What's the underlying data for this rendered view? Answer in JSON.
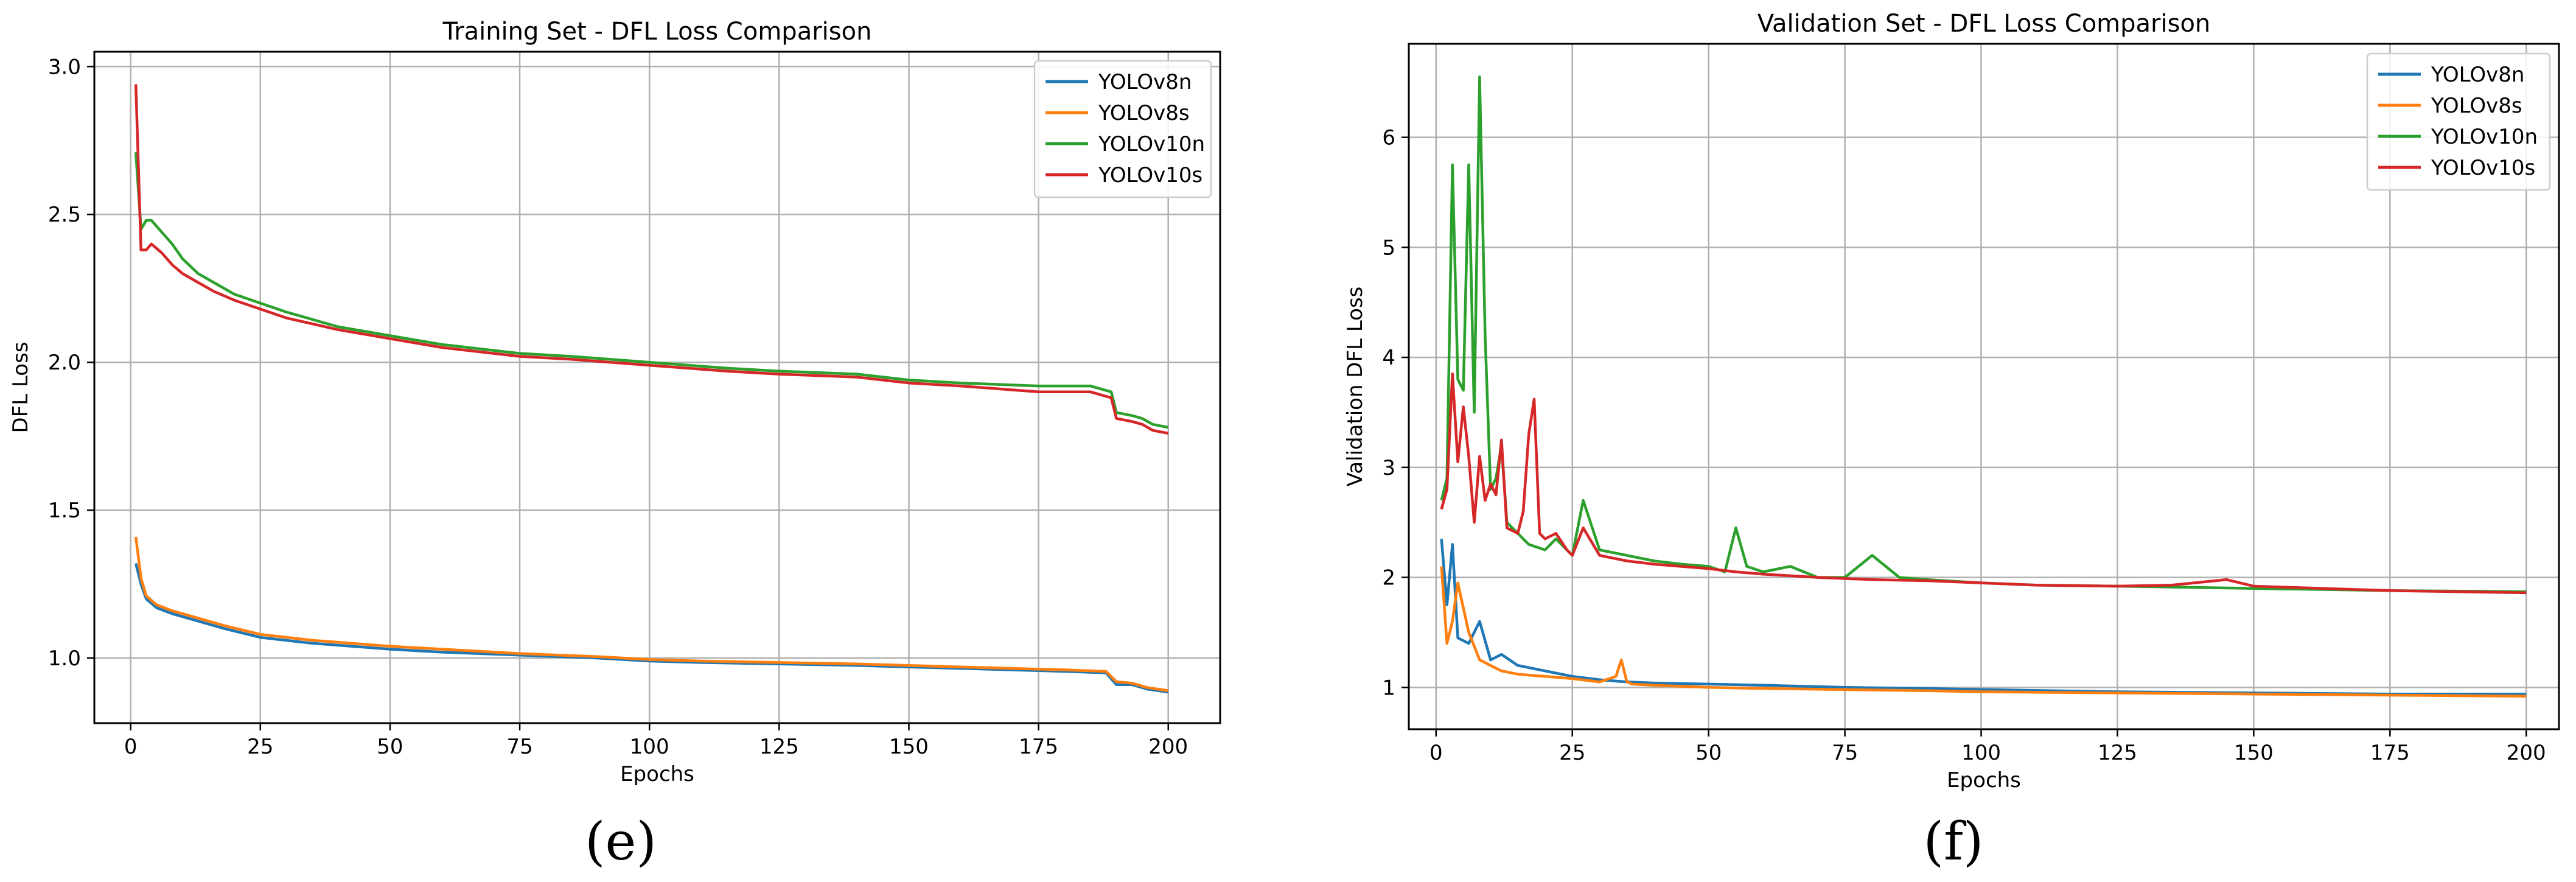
{
  "chart_data": [
    {
      "type": "line",
      "title": "Training Set - DFL Loss Comparison",
      "xlabel": "Epochs",
      "ylabel": "DFL Loss",
      "xlim": [
        -7,
        210
      ],
      "ylim": [
        0.78,
        3.05
      ],
      "xticks": [
        0,
        25,
        50,
        75,
        100,
        125,
        150,
        175,
        200
      ],
      "yticks": [
        1.0,
        1.5,
        2.0,
        2.5,
        3.0
      ],
      "ytick_labels": [
        "1.0",
        "1.5",
        "2.0",
        "2.5",
        "3.0"
      ],
      "grid": true,
      "legend_position": "top-right",
      "caption": "(e)",
      "series": [
        {
          "name": "YOLOv8n",
          "color": "#1f77b4",
          "x": [
            1,
            2,
            3,
            5,
            8,
            12,
            18,
            25,
            35,
            50,
            60,
            75,
            90,
            100,
            110,
            125,
            140,
            150,
            160,
            170,
            180,
            188,
            190,
            193,
            196,
            198,
            200
          ],
          "y": [
            1.32,
            1.25,
            1.2,
            1.17,
            1.15,
            1.13,
            1.1,
            1.07,
            1.05,
            1.03,
            1.02,
            1.01,
            1.0,
            0.99,
            0.985,
            0.98,
            0.975,
            0.97,
            0.965,
            0.96,
            0.955,
            0.95,
            0.91,
            0.91,
            0.895,
            0.89,
            0.885
          ]
        },
        {
          "name": "YOLOv8s",
          "color": "#ff7f0e",
          "x": [
            1,
            2,
            3,
            5,
            8,
            12,
            18,
            25,
            35,
            50,
            60,
            75,
            90,
            100,
            110,
            125,
            140,
            150,
            160,
            170,
            180,
            188,
            190,
            193,
            196,
            198,
            200
          ],
          "y": [
            1.41,
            1.27,
            1.21,
            1.18,
            1.16,
            1.14,
            1.11,
            1.08,
            1.06,
            1.04,
            1.03,
            1.015,
            1.005,
            0.995,
            0.99,
            0.985,
            0.98,
            0.975,
            0.97,
            0.965,
            0.96,
            0.955,
            0.92,
            0.915,
            0.9,
            0.895,
            0.89
          ]
        },
        {
          "name": "YOLOv10n",
          "color": "#2ca02c",
          "x": [
            1,
            2,
            3,
            4,
            6,
            8,
            10,
            13,
            16,
            20,
            25,
            30,
            40,
            50,
            60,
            75,
            85,
            100,
            115,
            125,
            140,
            150,
            160,
            175,
            185,
            189,
            190,
            193,
            195,
            197,
            200
          ],
          "y": [
            2.71,
            2.45,
            2.48,
            2.48,
            2.44,
            2.4,
            2.35,
            2.3,
            2.27,
            2.23,
            2.2,
            2.17,
            2.12,
            2.09,
            2.06,
            2.03,
            2.02,
            2.0,
            1.98,
            1.97,
            1.96,
            1.94,
            1.93,
            1.92,
            1.92,
            1.9,
            1.83,
            1.82,
            1.81,
            1.79,
            1.78
          ]
        },
        {
          "name": "YOLOv10s",
          "color": "#d62728",
          "x": [
            1,
            2,
            3,
            4,
            6,
            8,
            10,
            13,
            16,
            20,
            25,
            30,
            40,
            50,
            60,
            75,
            85,
            100,
            115,
            125,
            140,
            150,
            160,
            175,
            185,
            189,
            190,
            193,
            195,
            197,
            200
          ],
          "y": [
            2.94,
            2.38,
            2.38,
            2.4,
            2.37,
            2.33,
            2.3,
            2.27,
            2.24,
            2.21,
            2.18,
            2.15,
            2.11,
            2.08,
            2.05,
            2.02,
            2.01,
            1.99,
            1.97,
            1.96,
            1.95,
            1.93,
            1.92,
            1.9,
            1.9,
            1.88,
            1.81,
            1.8,
            1.79,
            1.77,
            1.76
          ]
        }
      ]
    },
    {
      "type": "line",
      "title": "Validation Set - DFL Loss Comparison",
      "xlabel": "Epochs",
      "ylabel": "Validation DFL Loss",
      "xlim": [
        -5,
        206
      ],
      "ylim": [
        0.62,
        6.85
      ],
      "xticks": [
        0,
        25,
        50,
        75,
        100,
        125,
        150,
        175,
        200
      ],
      "yticks": [
        1,
        2,
        3,
        4,
        5,
        6
      ],
      "ytick_labels": [
        "1",
        "2",
        "3",
        "4",
        "5",
        "6"
      ],
      "grid": true,
      "legend_position": "top-right",
      "caption": "(f)",
      "series": [
        {
          "name": "YOLOv8n",
          "color": "#1f77b4",
          "x": [
            1,
            2,
            3,
            4,
            6,
            8,
            10,
            12,
            15,
            20,
            25,
            30,
            35,
            40,
            50,
            60,
            75,
            90,
            100,
            125,
            150,
            175,
            200
          ],
          "y": [
            2.35,
            1.75,
            2.3,
            1.45,
            1.4,
            1.6,
            1.25,
            1.3,
            1.2,
            1.15,
            1.1,
            1.07,
            1.05,
            1.04,
            1.03,
            1.02,
            1.0,
            0.99,
            0.98,
            0.96,
            0.95,
            0.94,
            0.94
          ]
        },
        {
          "name": "YOLOv8s",
          "color": "#ff7f0e",
          "x": [
            1,
            2,
            3,
            4,
            6,
            8,
            10,
            12,
            15,
            20,
            25,
            30,
            33,
            34,
            35,
            36,
            40,
            50,
            60,
            75,
            90,
            100,
            125,
            150,
            175,
            200
          ],
          "y": [
            2.1,
            1.4,
            1.6,
            1.95,
            1.5,
            1.25,
            1.2,
            1.15,
            1.12,
            1.1,
            1.08,
            1.05,
            1.1,
            1.25,
            1.05,
            1.03,
            1.02,
            1.0,
            0.99,
            0.98,
            0.97,
            0.96,
            0.95,
            0.94,
            0.93,
            0.92
          ]
        },
        {
          "name": "YOLOv10n",
          "color": "#2ca02c",
          "x": [
            1,
            2,
            3,
            4,
            5,
            6,
            7,
            8,
            9,
            10,
            11,
            12,
            13,
            15,
            17,
            20,
            22,
            25,
            27,
            30,
            35,
            40,
            45,
            50,
            53,
            55,
            57,
            60,
            65,
            70,
            75,
            80,
            85,
            90,
            100,
            110,
            125,
            150,
            175,
            200
          ],
          "y": [
            2.7,
            2.9,
            5.75,
            3.8,
            3.7,
            5.75,
            3.5,
            6.55,
            4.2,
            2.8,
            2.9,
            3.2,
            2.5,
            2.4,
            2.3,
            2.25,
            2.35,
            2.2,
            2.7,
            2.25,
            2.2,
            2.15,
            2.12,
            2.1,
            2.05,
            2.45,
            2.1,
            2.05,
            2.1,
            2.0,
            2.0,
            2.2,
            2.0,
            1.98,
            1.95,
            1.93,
            1.92,
            1.9,
            1.88,
            1.87
          ]
        },
        {
          "name": "YOLOv10s",
          "color": "#d62728",
          "x": [
            1,
            2,
            3,
            4,
            5,
            6,
            7,
            8,
            9,
            10,
            11,
            12,
            13,
            15,
            16,
            17,
            18,
            19,
            20,
            22,
            24,
            25,
            27,
            30,
            35,
            40,
            45,
            50,
            55,
            60,
            70,
            80,
            90,
            100,
            110,
            125,
            135,
            145,
            150,
            175,
            200
          ],
          "y": [
            2.62,
            2.8,
            3.85,
            3.05,
            3.55,
            3.1,
            2.5,
            3.1,
            2.7,
            2.85,
            2.75,
            3.25,
            2.45,
            2.4,
            2.6,
            3.3,
            3.62,
            2.4,
            2.35,
            2.4,
            2.25,
            2.2,
            2.45,
            2.2,
            2.15,
            2.12,
            2.1,
            2.08,
            2.05,
            2.03,
            2.0,
            1.98,
            1.97,
            1.95,
            1.93,
            1.92,
            1.93,
            1.98,
            1.92,
            1.88,
            1.86
          ]
        }
      ]
    }
  ]
}
